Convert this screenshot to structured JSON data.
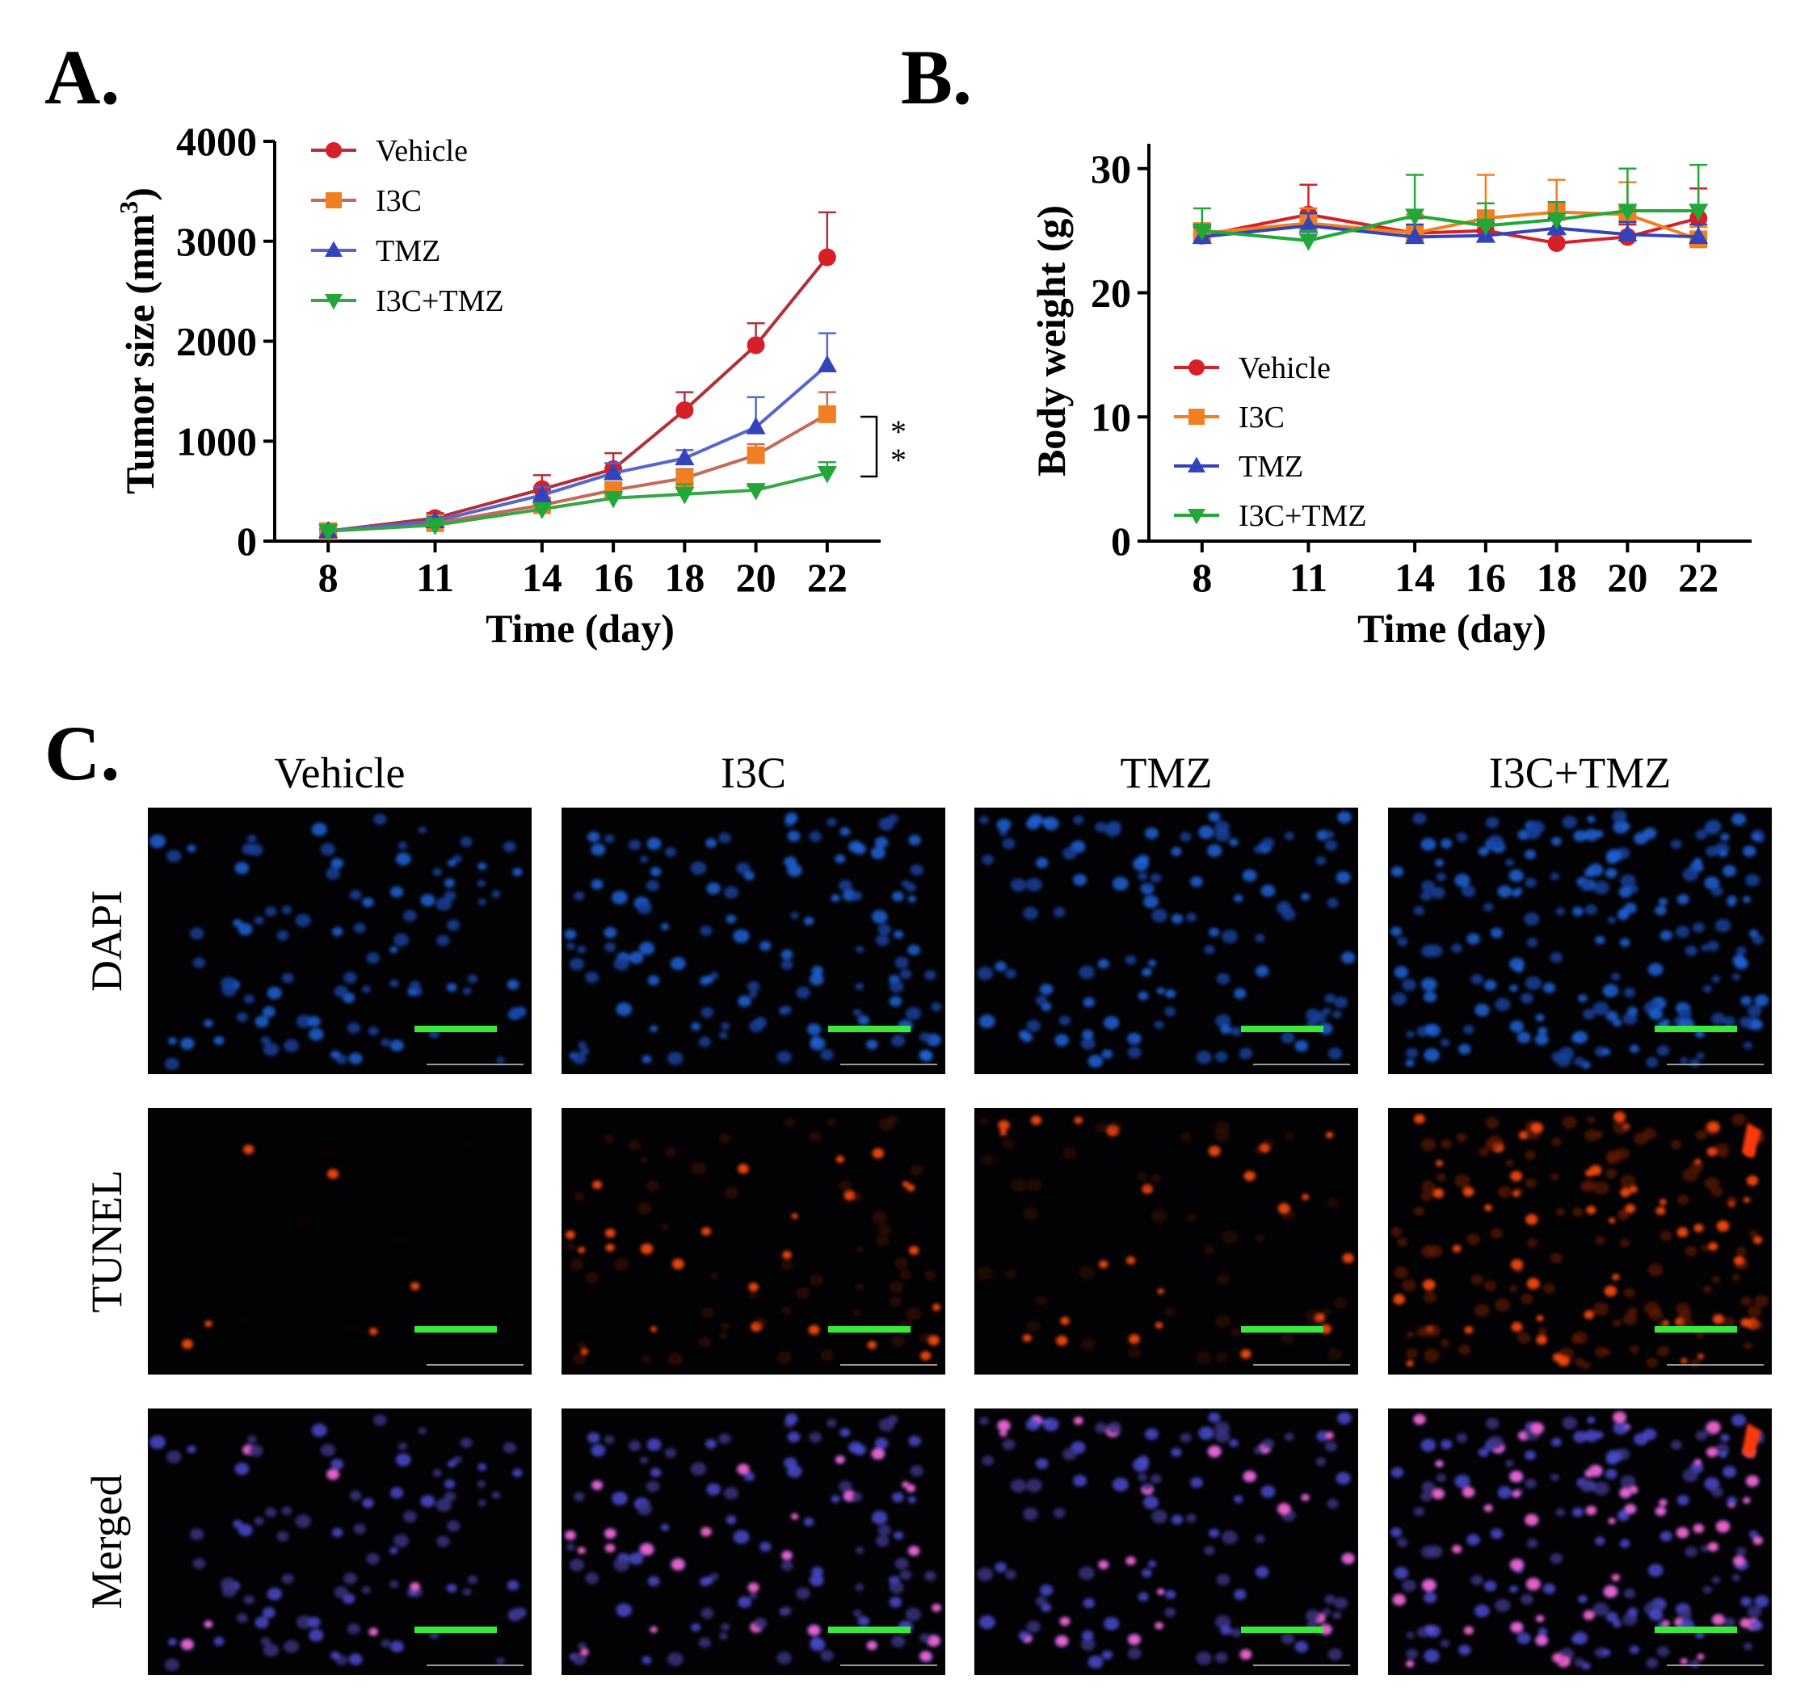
{
  "panels": {
    "a_letter": "A.",
    "b_letter": "B.",
    "c_letter": "C."
  },
  "chart_data": [
    {
      "type": "line",
      "title": "",
      "xlabel": "Time (day)",
      "ylabel": "Tumor size (mm³)",
      "ylabel_base": "Tumor size (mm",
      "ylabel_sup": "3",
      "ylabel_close": ")",
      "x": [
        8,
        11,
        14,
        16,
        18,
        20,
        22
      ],
      "xlim": [
        6.5,
        23.5
      ],
      "ylim": [
        0,
        4000
      ],
      "yticks": [
        0,
        1000,
        2000,
        3000,
        4000
      ],
      "legend": "top-left",
      "significance": "**",
      "series": [
        {
          "name": "Vehicle",
          "color": "#d62027",
          "line": "#b03038",
          "marker": "circle",
          "values": [
            100,
            230,
            520,
            720,
            1310,
            1960,
            2840
          ],
          "errors": [
            30,
            50,
            140,
            160,
            180,
            220,
            450
          ]
        },
        {
          "name": "I3C",
          "color": "#f07f22",
          "line": "#c46a5a",
          "marker": "square",
          "values": [
            100,
            180,
            360,
            510,
            630,
            860,
            1270
          ],
          "errors": [
            20,
            40,
            60,
            80,
            90,
            110,
            220
          ]
        },
        {
          "name": "TMZ",
          "color": "#3344bb",
          "line": "#5566cc",
          "marker": "triangle-up",
          "values": [
            100,
            200,
            460,
            680,
            830,
            1140,
            1760
          ],
          "errors": [
            20,
            40,
            80,
            100,
            80,
            300,
            320
          ]
        },
        {
          "name": "I3C+TMZ",
          "color": "#22a838",
          "line": "#35a545",
          "marker": "triangle-down",
          "values": [
            100,
            160,
            320,
            430,
            470,
            510,
            680
          ],
          "errors": [
            20,
            30,
            50,
            60,
            100,
            40,
            110
          ]
        }
      ]
    },
    {
      "type": "line",
      "title": "",
      "xlabel": "Time (day)",
      "ylabel": "Body weight (g)",
      "x": [
        8,
        11,
        14,
        16,
        18,
        20,
        22
      ],
      "xlim": [
        6.5,
        23.5
      ],
      "ylim": [
        0,
        32
      ],
      "yticks": [
        0,
        10,
        20,
        30
      ],
      "legend": "lower-left",
      "series": [
        {
          "name": "Vehicle",
          "color": "#d62027",
          "line": "#d62027",
          "marker": "circle",
          "values": [
            24.6,
            26.3,
            24.8,
            25.0,
            24.0,
            24.5,
            26.0
          ],
          "errors": [
            0.8,
            2.4,
            1.2,
            1.5,
            0.8,
            1.0,
            2.4
          ]
        },
        {
          "name": "I3C",
          "color": "#f07f22",
          "line": "#f07f22",
          "marker": "square",
          "values": [
            24.8,
            25.6,
            24.8,
            26.0,
            26.5,
            26.3,
            24.3
          ],
          "errors": [
            0.8,
            1.2,
            1.5,
            3.5,
            2.6,
            2.6,
            1.0
          ]
        },
        {
          "name": "TMZ",
          "color": "#3344bb",
          "line": "#3344bb",
          "marker": "triangle-up",
          "values": [
            24.5,
            25.4,
            24.5,
            24.6,
            25.2,
            24.7,
            24.5
          ],
          "errors": [
            0.8,
            1.0,
            1.0,
            1.0,
            0.8,
            1.0,
            1.0
          ]
        },
        {
          "name": "I3C+TMZ",
          "color": "#22a838",
          "line": "#22a838",
          "marker": "triangle-down",
          "values": [
            25.0,
            24.2,
            26.2,
            25.4,
            25.9,
            26.6,
            26.6
          ],
          "errors": [
            1.8,
            0.8,
            3.3,
            1.8,
            1.4,
            3.4,
            3.7
          ]
        }
      ]
    }
  ],
  "micrographs": {
    "columns": [
      "Vehicle",
      "I3C",
      "TMZ",
      "I3C+TMZ"
    ],
    "rows": [
      "DAPI",
      "TUNEL",
      "Merged"
    ],
    "scale_bar_color": "#39e83a",
    "tunel_intensity": [
      0.08,
      0.55,
      0.45,
      0.95
    ],
    "dapi_density": [
      0.35,
      0.55,
      0.5,
      1.0
    ]
  }
}
